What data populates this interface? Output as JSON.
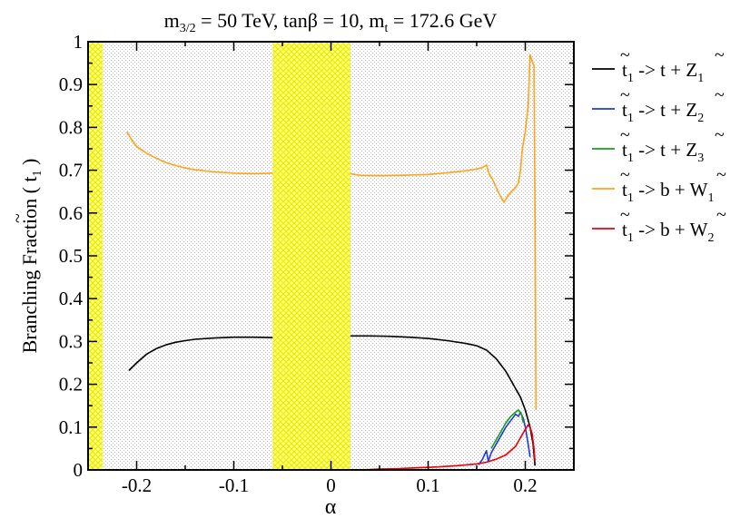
{
  "chart_data": {
    "type": "line",
    "title_parts": {
      "m": "m",
      "m_sub": "3/2",
      "part1": " = 50 TeV, tanβ = 10, m",
      "mt_sub": "t",
      "part2": " = 172.6 GeV"
    },
    "xlabel": "α",
    "ylabel_parts": {
      "prefix": "Branching Fraction ( ",
      "t": "t",
      "t_sub": "1",
      "suffix": " )"
    },
    "xlim": [
      -0.25,
      0.25
    ],
    "ylim": [
      0,
      1
    ],
    "x_ticks": [
      {
        "value": -0.2,
        "label": "-0.2"
      },
      {
        "value": -0.1,
        "label": "-0.1"
      },
      {
        "value": 0,
        "label": "0"
      },
      {
        "value": 0.1,
        "label": "0.1"
      },
      {
        "value": 0.2,
        "label": "0.2"
      }
    ],
    "y_ticks": [
      {
        "value": 0,
        "label": "0"
      },
      {
        "value": 0.1,
        "label": "0.1"
      },
      {
        "value": 0.2,
        "label": "0.2"
      },
      {
        "value": 0.3,
        "label": "0.3"
      },
      {
        "value": 0.4,
        "label": "0.4"
      },
      {
        "value": 0.5,
        "label": "0.5"
      },
      {
        "value": 0.6,
        "label": "0.6"
      },
      {
        "value": 0.7,
        "label": "0.7"
      },
      {
        "value": 0.8,
        "label": "0.8"
      },
      {
        "value": 0.9,
        "label": "0.9"
      },
      {
        "value": 1,
        "label": "1"
      }
    ],
    "excluded_regions": [
      [
        -0.25,
        -0.235
      ],
      [
        -0.06,
        0.02
      ]
    ],
    "grid": false,
    "legend_position": "right",
    "series": [
      {
        "legend": {
          "p": "t",
          "p_sub": "1",
          "arrow": " -> ",
          "q": "t + ",
          "r": "Z",
          "r_sub": "1"
        },
        "color": "#000000",
        "segments": [
          [
            [
              -0.208,
              0.232
            ],
            [
              -0.2,
              0.25
            ],
            [
              -0.19,
              0.27
            ],
            [
              -0.18,
              0.283
            ],
            [
              -0.17,
              0.292
            ],
            [
              -0.16,
              0.298
            ],
            [
              -0.15,
              0.302
            ],
            [
              -0.14,
              0.305
            ],
            [
              -0.12,
              0.308
            ],
            [
              -0.1,
              0.31
            ],
            [
              -0.08,
              0.31
            ],
            [
              -0.06,
              0.309
            ]
          ],
          [
            [
              0.02,
              0.313
            ],
            [
              0.04,
              0.313
            ],
            [
              0.06,
              0.312
            ],
            [
              0.08,
              0.31
            ],
            [
              0.1,
              0.307
            ],
            [
              0.12,
              0.302
            ],
            [
              0.14,
              0.295
            ],
            [
              0.15,
              0.29
            ],
            [
              0.16,
              0.28
            ],
            [
              0.17,
              0.26
            ],
            [
              0.175,
              0.245
            ],
            [
              0.18,
              0.23
            ],
            [
              0.185,
              0.21
            ],
            [
              0.19,
              0.19
            ],
            [
              0.195,
              0.17
            ],
            [
              0.2,
              0.14
            ],
            [
              0.205,
              0.1
            ],
            [
              0.208,
              0.06
            ],
            [
              0.21,
              0.01
            ]
          ]
        ]
      },
      {
        "legend": {
          "p": "t",
          "p_sub": "1",
          "arrow": " -> ",
          "q": "t + ",
          "r": "Z",
          "r_sub": "2"
        },
        "color": "#1f3ad6",
        "segments": [
          [
            [
              0.152,
              0.012
            ],
            [
              0.156,
              0.025
            ],
            [
              0.16,
              0.045
            ],
            [
              0.162,
              0.02
            ],
            [
              0.165,
              0.04
            ],
            [
              0.17,
              0.06
            ],
            [
              0.175,
              0.08
            ],
            [
              0.18,
              0.1
            ],
            [
              0.185,
              0.115
            ],
            [
              0.19,
              0.13
            ],
            [
              0.193,
              0.125
            ],
            [
              0.195,
              0.135
            ],
            [
              0.198,
              0.12
            ],
            [
              0.2,
              0.1
            ],
            [
              0.203,
              0.06
            ],
            [
              0.205,
              0.03
            ]
          ]
        ]
      },
      {
        "legend": {
          "p": "t",
          "p_sub": "1",
          "arrow": " -> ",
          "q": "t + ",
          "r": "Z",
          "r_sub": "3"
        },
        "color": "#1c9c1c",
        "segments": [
          [
            [
              0.165,
              0.05
            ],
            [
              0.17,
              0.07
            ],
            [
              0.175,
              0.09
            ],
            [
              0.18,
              0.11
            ],
            [
              0.185,
              0.125
            ],
            [
              0.19,
              0.135
            ],
            [
              0.193,
              0.14
            ],
            [
              0.196,
              0.13
            ],
            [
              0.198,
              0.11
            ]
          ]
        ]
      },
      {
        "legend": {
          "p": "t",
          "p_sub": "1",
          "arrow": " -> ",
          "q": "b + ",
          "r": "W",
          "r_sub": "1"
        },
        "color": "#ffa31a",
        "segments": [
          [
            [
              -0.21,
              0.79
            ],
            [
              -0.205,
              0.77
            ],
            [
              -0.2,
              0.755
            ],
            [
              -0.19,
              0.74
            ],
            [
              -0.18,
              0.728
            ],
            [
              -0.17,
              0.718
            ],
            [
              -0.16,
              0.711
            ],
            [
              -0.15,
              0.705
            ],
            [
              -0.14,
              0.701
            ],
            [
              -0.12,
              0.696
            ],
            [
              -0.1,
              0.693
            ],
            [
              -0.08,
              0.692
            ],
            [
              -0.06,
              0.693
            ]
          ],
          [
            [
              0.02,
              0.692
            ],
            [
              0.03,
              0.688
            ],
            [
              0.05,
              0.687
            ],
            [
              0.07,
              0.688
            ],
            [
              0.1,
              0.69
            ],
            [
              0.12,
              0.694
            ],
            [
              0.14,
              0.699
            ],
            [
              0.155,
              0.705
            ],
            [
              0.16,
              0.712
            ],
            [
              0.163,
              0.69
            ],
            [
              0.166,
              0.68
            ],
            [
              0.169,
              0.665
            ],
            [
              0.172,
              0.65
            ],
            [
              0.175,
              0.637
            ],
            [
              0.178,
              0.625
            ],
            [
              0.182,
              0.64
            ],
            [
              0.186,
              0.65
            ],
            [
              0.19,
              0.66
            ],
            [
              0.193,
              0.67
            ],
            [
              0.195,
              0.7
            ],
            [
              0.197,
              0.75
            ],
            [
              0.2,
              0.79
            ],
            [
              0.203,
              0.85
            ],
            [
              0.205,
              0.97
            ],
            [
              0.207,
              0.955
            ],
            [
              0.209,
              0.945
            ],
            [
              0.21,
              0.6
            ],
            [
              0.211,
              0.14
            ]
          ]
        ]
      },
      {
        "legend": {
          "p": "t",
          "p_sub": "1",
          "arrow": " -> ",
          "q": "b + ",
          "r": "W",
          "r_sub": "2"
        },
        "color": "#e8000a",
        "segments": [
          [
            [
              0.03,
              0.0
            ],
            [
              0.05,
              0.002
            ],
            [
              0.07,
              0.003
            ],
            [
              0.09,
              0.005
            ],
            [
              0.11,
              0.007
            ],
            [
              0.13,
              0.01
            ],
            [
              0.15,
              0.014
            ],
            [
              0.16,
              0.018
            ],
            [
              0.17,
              0.025
            ],
            [
              0.18,
              0.035
            ],
            [
              0.19,
              0.055
            ],
            [
              0.195,
              0.075
            ],
            [
              0.2,
              0.095
            ],
            [
              0.203,
              0.105
            ],
            [
              0.205,
              0.1
            ],
            [
              0.207,
              0.085
            ],
            [
              0.209,
              0.05
            ],
            [
              0.21,
              0.02
            ]
          ]
        ]
      }
    ]
  }
}
